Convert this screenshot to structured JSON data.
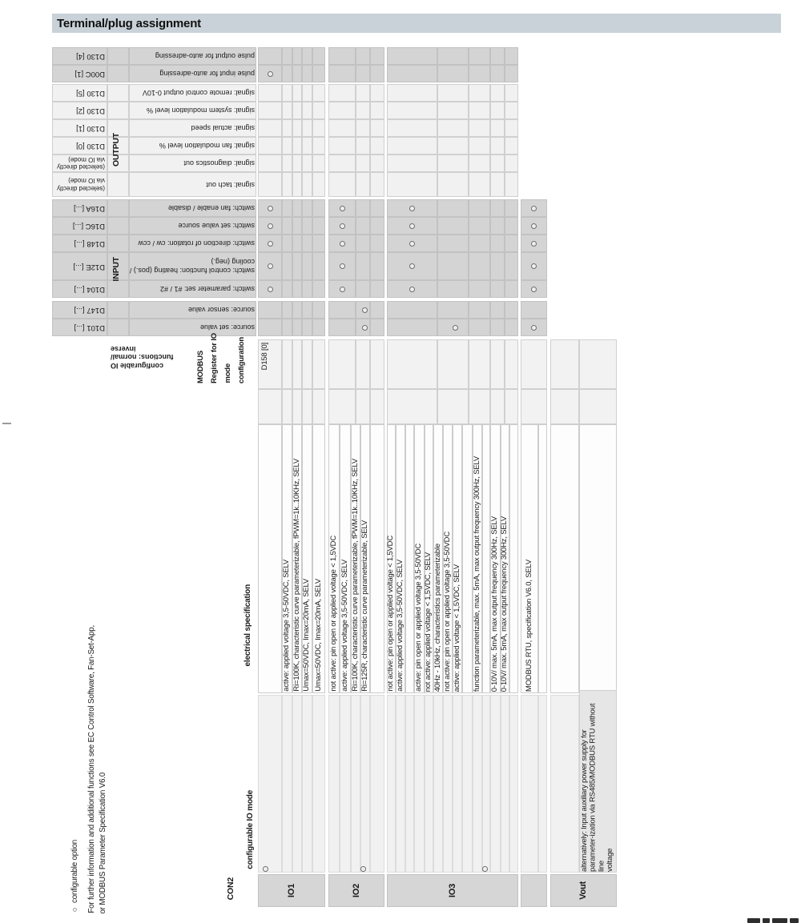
{
  "page": {
    "title": "Terminal/plug assignment"
  },
  "headers": {
    "connector": "CON2",
    "configurable_io_mode": "configurable IO mode",
    "electrical_specification": "electrical specification",
    "io_functions_note": [
      "configurable IO",
      "functions: normal/",
      "inverse"
    ],
    "modbus_register_lines": [
      "MODBUS",
      "Register for IO",
      "mode",
      "configuration"
    ],
    "input_group": "INPUT",
    "output_group": "OUTPUT"
  },
  "functions": [
    {
      "label": "pulse output for auto-adressing",
      "register": "D130 [4]",
      "register_is_note": false,
      "options": []
    },
    {
      "label": "pulse input for auto-adressing",
      "register": "D00C [1]",
      "register_is_note": false,
      "options": [
        "io1"
      ]
    },
    {
      "label": "signal: remote control output 0-10V",
      "register": "D130 [5]",
      "register_is_note": false,
      "options": []
    },
    {
      "label": "signal: system modulation level %",
      "register": "D130 [2]",
      "register_is_note": false,
      "options": []
    },
    {
      "label": "signal: actual speed",
      "register": "D130 [1]",
      "register_is_note": false,
      "options": []
    },
    {
      "label": "signal: fan modulation level %",
      "register": "D130 [0]",
      "register_is_note": false,
      "options": []
    },
    {
      "label": "signal: diagnostics out",
      "register": "(selected directly\nvia IO mode)",
      "register_is_note": true,
      "options": []
    },
    {
      "label": "signal: tach out",
      "register": "(selected directly\nvia IO mode)",
      "register_is_note": true,
      "options": []
    },
    {
      "label": "switch: fan enable / disable",
      "register": "D16A [...]",
      "register_is_note": false,
      "options": [
        "io1",
        "io2_switch",
        "io3_switch",
        "modbus"
      ]
    },
    {
      "label": "switch: set value source",
      "register": "D16C [...]",
      "register_is_note": false,
      "options": [
        "io1",
        "io2_switch",
        "io3_switch",
        "modbus"
      ]
    },
    {
      "label": "switch: direction of rotation: cw / ccw",
      "register": "D148 [...]",
      "register_is_note": false,
      "options": [
        "io1",
        "io2_switch",
        "io3_switch",
        "modbus"
      ]
    },
    {
      "label": "switch: control function: heating (pos.) /\ncooling (neg.)",
      "register": "D12E [...]",
      "register_is_note": false,
      "options": [
        "io1",
        "io2_switch",
        "io3_switch",
        "modbus"
      ]
    },
    {
      "label": "switch: parameter set: #1 / #2",
      "register": "D104 [...]",
      "register_is_note": false,
      "options": [
        "io1",
        "io2_switch",
        "io3_switch",
        "modbus"
      ]
    },
    {
      "label": "source: sensor value",
      "register": "D147 [...]",
      "register_is_note": false,
      "options": [
        "io2_analog"
      ]
    },
    {
      "label": "source: set value",
      "register": "D101 [...]",
      "register_is_note": false,
      "options": [
        "io2_analog",
        "io3_freq",
        "modbus"
      ]
    }
  ],
  "groups": [
    {
      "id": "io1",
      "label": "IO1",
      "modbus_register_value": "D158 [0]",
      "configurable": true,
      "rows": [
        "",
        "active: applied voltage 3,5-50VDC, SELV",
        "Ri=100K, characteristic curve parameterizable, fPWM=1k..10KHz, SELV",
        "Umax=50VDC, Imax=20mA, SELV",
        "Umax=50VDC, Imax=20mA, SELV"
      ]
    },
    {
      "id": "io2",
      "label": "IO2",
      "modbus_register_value": "",
      "configurable": true,
      "rows": [
        "not active: pin open or applied voltage < 1,5VDC",
        "active: applied voltage 3,5-50VDC, SELV",
        "Ri=100K, characteristic curve parameterizable, fPWM=1k..10KHz, SELV",
        "Ri=125R, characteristic curve parameterizable, SELV",
        ""
      ]
    },
    {
      "id": "io3",
      "label": "IO3",
      "modbus_register_value": "",
      "configurable": true,
      "rows": [
        "not active: pin open or applied voltage < 1,5VDC",
        "active: applied voltage 3,5-50VDC, SELV",
        "",
        "active: pin open or applied voltage 3,5-50VDC",
        "not active: applied voltage < 1,5VDC, SELV",
        "40Hz - 10kHz, characteristics parameterizable",
        "not active: pin open or applied voltage 3,5-50VDC",
        "active: applied voltage < 1,5VDC, SELV",
        "",
        "function parameterizable, max. 5mA, max output frequency 300Hz, SELV",
        "",
        "0-10V/ max. 5mA, max output frequency 300Hz, SELV",
        "0-10V/ max. 5mA, max output frequency 300Hz, SELV",
        ""
      ]
    },
    {
      "id": "modbus",
      "label": "",
      "modbus_register_value": "",
      "configurable": false,
      "rows": [
        "MODBUS RTU, specification V6.0, SELV",
        ""
      ]
    },
    {
      "id": "vout",
      "label": "Vout",
      "modbus_register_value": "",
      "configurable": false,
      "note_lines": [
        "alternatively:  Input auxiliary power supply for",
        "parameter-ization via RS485/MODBUS RTU without line",
        "voltage"
      ],
      "rows": [
        "",
        ""
      ]
    }
  ],
  "footnotes": [
    "○ configurable option",
    "For further information and additional functions see EC Control Software, Fan-Set-App,",
    "or MODBUS Parameter Specification V6.0"
  ]
}
